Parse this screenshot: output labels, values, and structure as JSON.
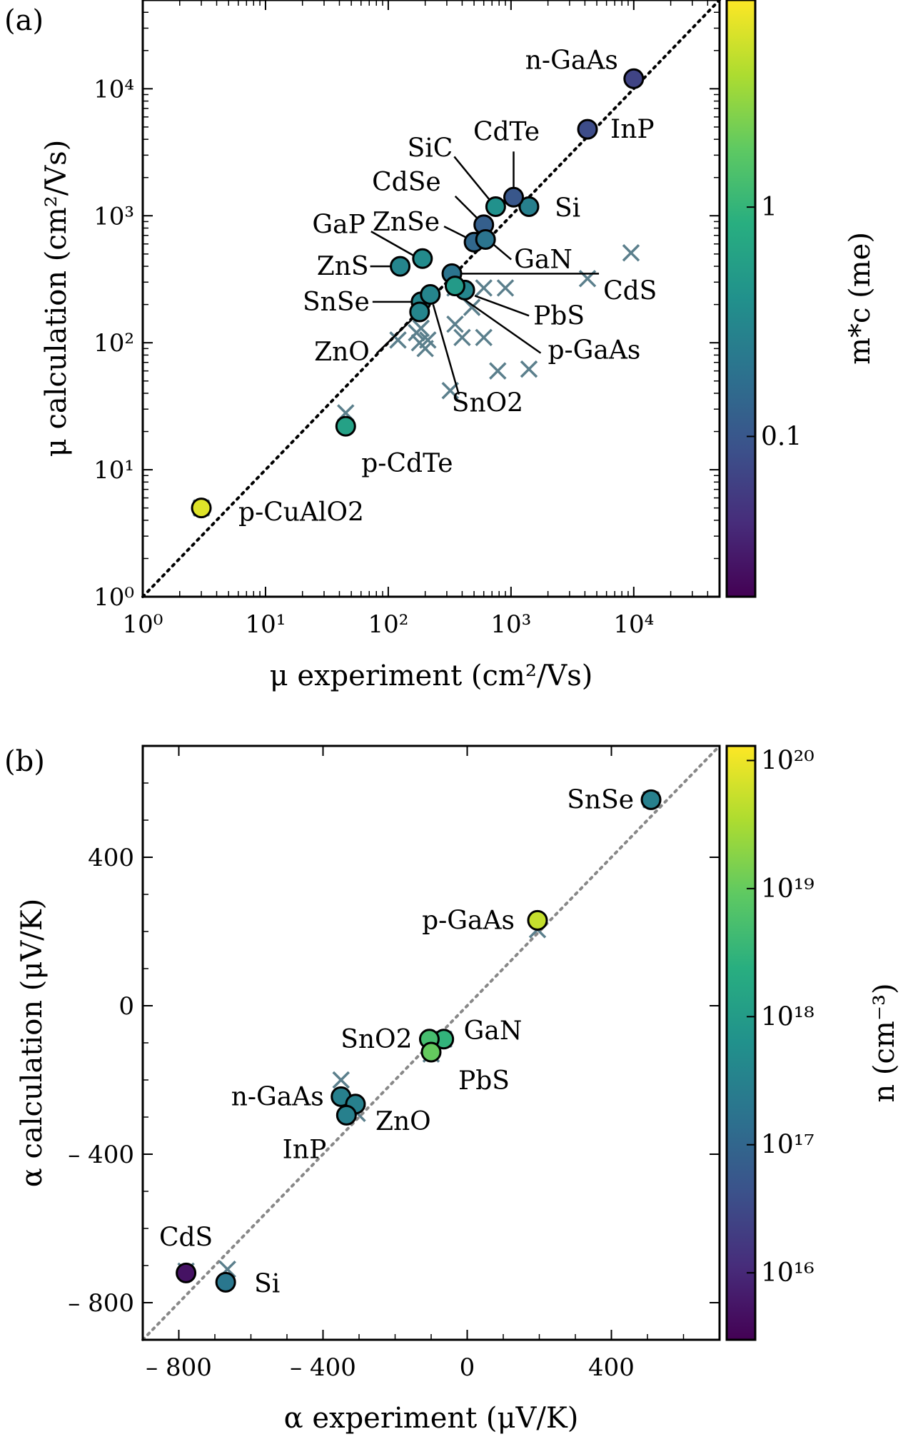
{
  "chart_data": [
    {
      "panel": "(a)",
      "type": "scatter",
      "xlabel": "μ experiment (cm²/Vs)",
      "ylabel": "μ calculation (cm²/Vs)",
      "xscale": "log",
      "yscale": "log",
      "xlim": [
        1,
        50000
      ],
      "ylim": [
        1,
        50000
      ],
      "xticks": [
        1,
        10,
        100,
        1000,
        10000
      ],
      "xtick_labels": [
        "10⁰",
        "10¹",
        "10²",
        "10³",
        "10⁴"
      ],
      "yticks": [
        1,
        10,
        100,
        1000,
        10000
      ],
      "ytick_labels": [
        "10⁰",
        "10¹",
        "10²",
        "10³",
        "10⁴"
      ],
      "diagonal": "y = x (dotted)",
      "colorbar": {
        "label": "m*c (me)",
        "scale": "log",
        "range": [
          0.02,
          8
        ],
        "ticks": [
          0.1,
          1
        ],
        "tick_labels": [
          "0.1",
          "1"
        ],
        "colormap": "viridis"
      },
      "series": [
        {
          "marker": "circle",
          "points": [
            {
              "label": "n-GaAs",
              "x": 10000,
              "y": 12000,
              "c": 0.067
            },
            {
              "label": "InP",
              "x": 4200,
              "y": 4800,
              "c": 0.08
            },
            {
              "label": "Si",
              "x": 1400,
              "y": 1180,
              "c": 0.26
            },
            {
              "label": "CdTe",
              "x": 1050,
              "y": 1400,
              "c": 0.1
            },
            {
              "label": "SiC",
              "x": 750,
              "y": 1180,
              "c": 0.4
            },
            {
              "label": "CdSe",
              "x": 600,
              "y": 850,
              "c": 0.12
            },
            {
              "label": "ZnSe",
              "x": 500,
              "y": 620,
              "c": 0.15
            },
            {
              "label": "GaN",
              "x": 620,
              "y": 650,
              "c": 0.2
            },
            {
              "label": "GaP",
              "x": 190,
              "y": 460,
              "c": 0.35
            },
            {
              "label": "ZnS",
              "x": 125,
              "y": 400,
              "c": 0.3
            },
            {
              "label": "CdS",
              "x": 330,
              "y": 350,
              "c": 0.2
            },
            {
              "label": "PbS",
              "x": 420,
              "y": 260,
              "c": 0.3
            },
            {
              "label": "SnSe",
              "x": 185,
              "y": 210,
              "c": 0.3
            },
            {
              "label": "ZnO",
              "x": 180,
              "y": 175,
              "c": 0.3
            },
            {
              "label": "p-GaAs",
              "x": 350,
              "y": 280,
              "c": 0.5
            },
            {
              "label": "SnO2",
              "x": 220,
              "y": 240,
              "c": 0.3
            },
            {
              "label": "p-CdTe",
              "x": 45,
              "y": 22,
              "c": 0.6
            },
            {
              "label": "p-CuAlO2",
              "x": 3,
              "y": 5,
              "c": 6
            }
          ]
        },
        {
          "marker": "x",
          "color": "#5b7f8c",
          "points": [
            {
              "x": 45,
              "y": 28
            },
            {
              "x": 3,
              "y": 5
            },
            {
              "x": 120,
              "y": 105
            },
            {
              "x": 180,
              "y": 100
            },
            {
              "x": 200,
              "y": 90
            },
            {
              "x": 185,
              "y": 130
            },
            {
              "x": 210,
              "y": 105
            },
            {
              "x": 170,
              "y": 120
            },
            {
              "x": 320,
              "y": 42
            },
            {
              "x": 780,
              "y": 60
            },
            {
              "x": 1400,
              "y": 62
            },
            {
              "x": 400,
              "y": 110
            },
            {
              "x": 600,
              "y": 110
            },
            {
              "x": 350,
              "y": 140
            },
            {
              "x": 480,
              "y": 190
            },
            {
              "x": 600,
              "y": 270
            },
            {
              "x": 900,
              "y": 270
            },
            {
              "x": 4200,
              "y": 320
            },
            {
              "x": 9500,
              "y": 510
            },
            {
              "x": 350,
              "y": 270
            }
          ]
        }
      ]
    },
    {
      "panel": "(b)",
      "type": "scatter",
      "xlabel": "α experiment (μV/K)",
      "ylabel": "α calculation (μV/K)",
      "xlim": [
        -900,
        700
      ],
      "ylim": [
        -900,
        700
      ],
      "xticks": [
        -800,
        -400,
        0,
        400
      ],
      "xtick_labels": [
        "– 800",
        "– 400",
        "0",
        "400"
      ],
      "yticks": [
        -800,
        -400,
        0,
        400
      ],
      "ytick_labels": [
        "– 800",
        "– 400",
        "0",
        "400"
      ],
      "diagonal": "y = x (dotted grey)",
      "colorbar": {
        "label": "n (cm⁻³)",
        "scale": "log",
        "range": [
          3000000000000000.0,
          1.3e+20
        ],
        "ticks": [
          1e+16,
          1e+17,
          1e+18,
          1e+19,
          1e+20
        ],
        "tick_labels": [
          "10¹⁶",
          "10¹⁷",
          "10¹⁸",
          "10¹⁹",
          "10²⁰"
        ],
        "colormap": "viridis"
      },
      "series": [
        {
          "marker": "circle",
          "points": [
            {
              "label": "SnSe",
              "x": 510,
              "y": 555,
              "c": 3e+17
            },
            {
              "label": "p-GaAs",
              "x": 195,
              "y": 230,
              "c": 5e+19
            },
            {
              "label": "GaN",
              "x": -65,
              "y": -90,
              "c": 3e+18
            },
            {
              "label": "SnO2",
              "x": -105,
              "y": -90,
              "c": 5e+18
            },
            {
              "label": "PbS",
              "x": -100,
              "y": -125,
              "c": 1e+19
            },
            {
              "label": "n-GaAs",
              "x": -350,
              "y": -245,
              "c": 3e+17
            },
            {
              "label": "ZnO",
              "x": -310,
              "y": -265,
              "c": 3e+17
            },
            {
              "label": "InP",
              "x": -335,
              "y": -295,
              "c": 3e+17
            },
            {
              "label": "CdS",
              "x": -780,
              "y": -720,
              "c": 5000000000000000.0
            },
            {
              "label": "Si",
              "x": -670,
              "y": -745,
              "c": 2e+17
            }
          ]
        },
        {
          "marker": "x",
          "color": "#5b7f8c",
          "points": [
            {
              "x": 510,
              "y": 555
            },
            {
              "x": 195,
              "y": 205
            },
            {
              "x": -65,
              "y": -90
            },
            {
              "x": -105,
              "y": -110
            },
            {
              "x": -100,
              "y": -130
            },
            {
              "x": -350,
              "y": -200
            },
            {
              "x": -305,
              "y": -290
            },
            {
              "x": -335,
              "y": -280
            },
            {
              "x": -665,
              "y": -710
            },
            {
              "x": -780,
              "y": -715
            }
          ]
        }
      ]
    }
  ]
}
